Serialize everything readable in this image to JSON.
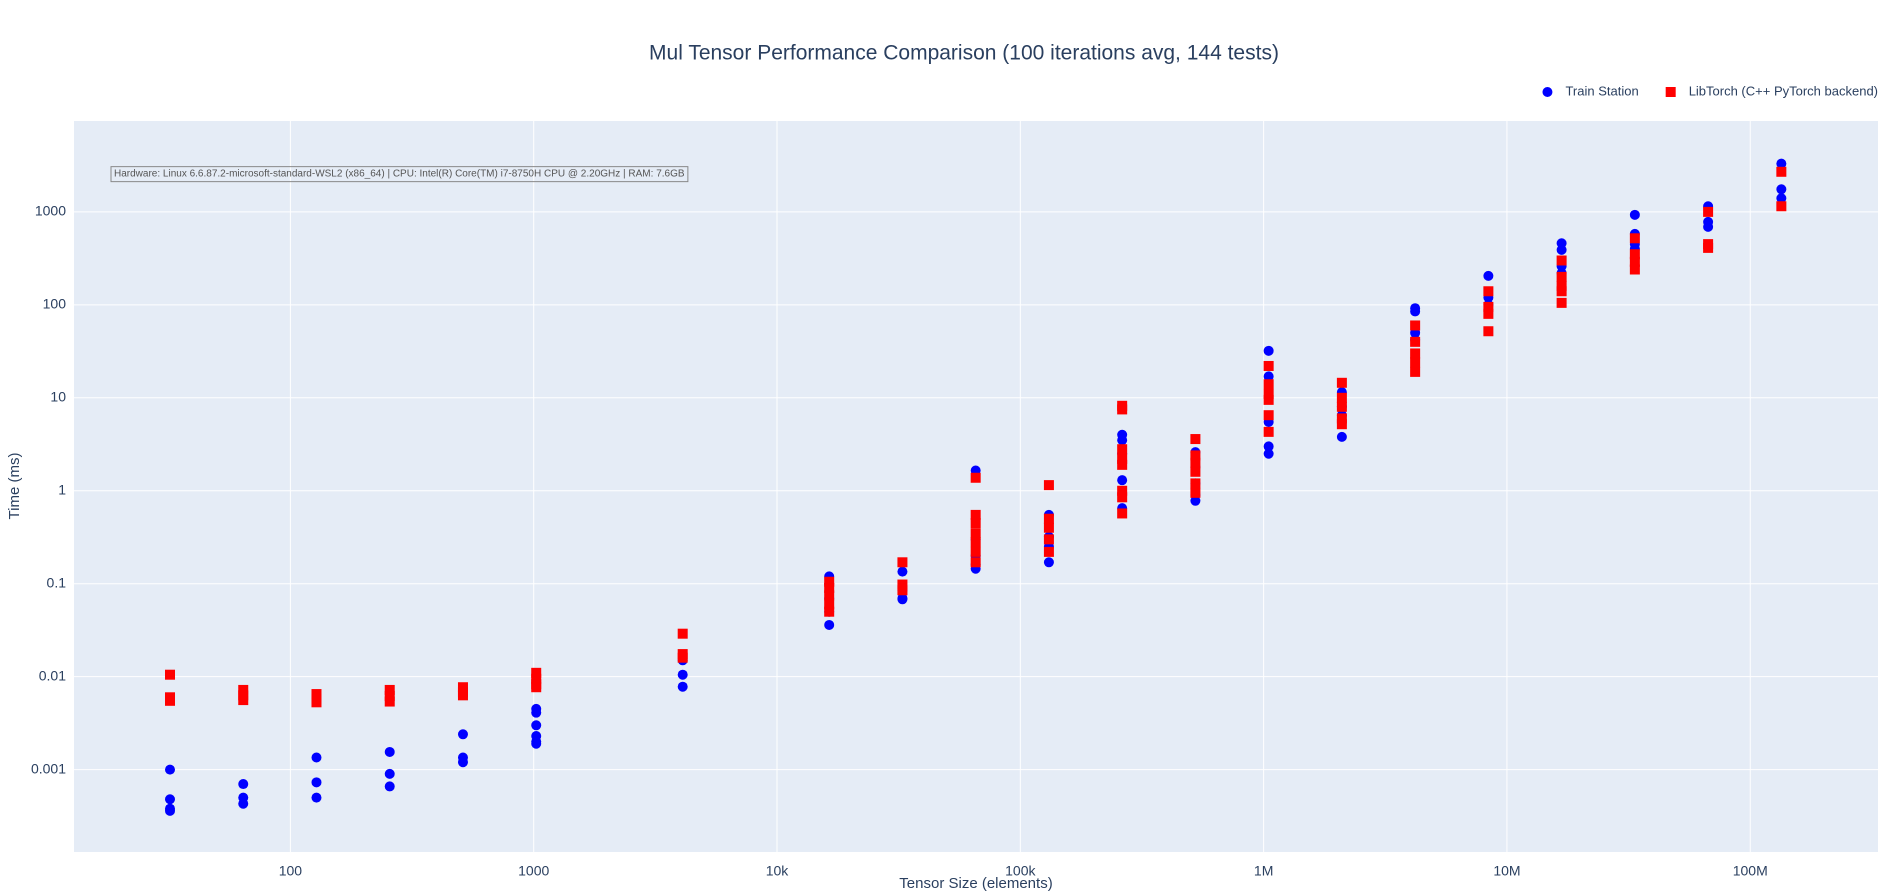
{
  "chart_data": {
    "type": "scatter",
    "title": "Mul Tensor Performance Comparison (100 iterations avg, 144 tests)",
    "x_label": "Tensor Size (elements)",
    "y_label": "Time (ms)",
    "annotation": "Hardware: Linux 6.6.87.2-microsoft-standard-WSL2 (x86_64) | CPU: Intel(R) Core(TM) i7-8750H CPU @ 2.20GHz | RAM: 7.6GB",
    "xscale": "log",
    "yscale": "log",
    "grid": true,
    "legend": "top-right",
    "xlim": [
      12.9,
      335000000
    ],
    "ylim": [
      0.00013,
      9500
    ],
    "xticks": [
      100,
      1000,
      {
        "value": 10000,
        "label": "10k"
      },
      {
        "value": 100000,
        "label": "100k"
      },
      {
        "value": 1000000,
        "label": "1M"
      },
      {
        "value": 10000000,
        "label": "10M"
      },
      {
        "value": 100000000,
        "label": "100M"
      }
    ],
    "yticks": [
      0.001,
      0.01,
      0.1,
      1,
      10,
      100,
      1000
    ],
    "series": [
      {
        "name": "Train Station",
        "color": "#0000ff",
        "marker": "circle",
        "x": [
          32,
          32,
          32,
          32,
          64,
          64,
          64,
          128,
          128,
          128,
          256,
          256,
          256,
          512,
          512,
          512,
          1024,
          1024,
          1024,
          1024,
          1024,
          1024,
          4096,
          4096,
          4096,
          16384,
          16384,
          16384,
          16384,
          16384,
          32768,
          32768,
          32768,
          32768,
          65536,
          65536,
          65536,
          65536,
          65536,
          131072,
          131072,
          131072,
          131072,
          262144,
          262144,
          262144,
          262144,
          262144,
          524288,
          524288,
          524288,
          524288,
          524288,
          1048576,
          1048576,
          1048576,
          1048576,
          1048576,
          2097152,
          2097152,
          2097152,
          2097152,
          4194304,
          4194304,
          4194304,
          4194304,
          8388608,
          8388608,
          8388608,
          16777216,
          16777216,
          16777216,
          16777216,
          33554432,
          33554432,
          33554432,
          33554432,
          67108864,
          67108864,
          67108864,
          134217728,
          134217728,
          134217728
        ],
        "values": [
          0.001,
          0.00048,
          0.00038,
          0.00036,
          0.0007,
          0.0005,
          0.00043,
          0.00135,
          0.00073,
          0.0005,
          0.00155,
          0.0009,
          0.00066,
          0.0024,
          0.00135,
          0.0012,
          0.0045,
          0.0041,
          0.003,
          0.0023,
          0.002,
          0.0019,
          0.015,
          0.0105,
          0.0078,
          0.12,
          0.1,
          0.07,
          0.05,
          0.036,
          0.135,
          0.085,
          0.07,
          0.068,
          1.65,
          0.3,
          0.2,
          0.16,
          0.145,
          0.55,
          0.32,
          0.25,
          0.17,
          4,
          3.5,
          2.5,
          1.3,
          0.65,
          2.6,
          1.8,
          1.2,
          0.9,
          0.78,
          32,
          17,
          5.5,
          3,
          2.5,
          11.5,
          8,
          6.5,
          3.8,
          92,
          85,
          50,
          42,
          205,
          120,
          100,
          460,
          390,
          260,
          220,
          930,
          580,
          450,
          400,
          1150,
          780,
          690,
          3300,
          1750,
          1400
        ]
      },
      {
        "name": "LibTorch (C++ PyTorch backend)",
        "color": "#ff0000",
        "marker": "square",
        "x": [
          32,
          32,
          32,
          64,
          64,
          64,
          128,
          128,
          128,
          256,
          256,
          256,
          512,
          512,
          512,
          1024,
          1024,
          1024,
          1024,
          4096,
          4096,
          4096,
          16384,
          16384,
          16384,
          16384,
          16384,
          32768,
          32768,
          32768,
          65536,
          65536,
          65536,
          65536,
          65536,
          65536,
          65536,
          131072,
          131072,
          131072,
          131072,
          131072,
          262144,
          262144,
          262144,
          262144,
          262144,
          262144,
          262144,
          262144,
          524288,
          524288,
          524288,
          524288,
          524288,
          524288,
          1048576,
          1048576,
          1048576,
          1048576,
          1048576,
          1048576,
          2097152,
          2097152,
          2097152,
          2097152,
          2097152,
          4194304,
          4194304,
          4194304,
          4194304,
          4194304,
          8388608,
          8388608,
          8388608,
          8388608,
          16777216,
          16777216,
          16777216,
          16777216,
          16777216,
          33554432,
          33554432,
          33554432,
          33554432,
          67108864,
          67108864,
          67108864,
          134217728,
          134217728
        ],
        "values": [
          0.0105,
          0.006,
          0.0055,
          0.0072,
          0.0063,
          0.0056,
          0.0065,
          0.0058,
          0.0053,
          0.0072,
          0.0062,
          0.0054,
          0.0077,
          0.0068,
          0.0063,
          0.011,
          0.0095,
          0.0083,
          0.0077,
          0.029,
          0.0175,
          0.016,
          0.105,
          0.09,
          0.075,
          0.06,
          0.05,
          0.17,
          0.098,
          0.085,
          1.38,
          0.55,
          0.45,
          0.35,
          0.28,
          0.22,
          0.17,
          1.15,
          0.5,
          0.4,
          0.3,
          0.22,
          8.2,
          7.5,
          2.8,
          2.2,
          1.9,
          1.0,
          0.85,
          0.57,
          3.6,
          2.4,
          2.0,
          1.6,
          1.2,
          0.95,
          22,
          14,
          11,
          9.5,
          6.5,
          4.3,
          14.5,
          10,
          8,
          6,
          5.2,
          60,
          40,
          30,
          24,
          19,
          140,
          95,
          80,
          52,
          300,
          200,
          160,
          140,
          105,
          520,
          350,
          290,
          240,
          1000,
          450,
          410,
          2700,
          1150
        ]
      }
    ]
  }
}
